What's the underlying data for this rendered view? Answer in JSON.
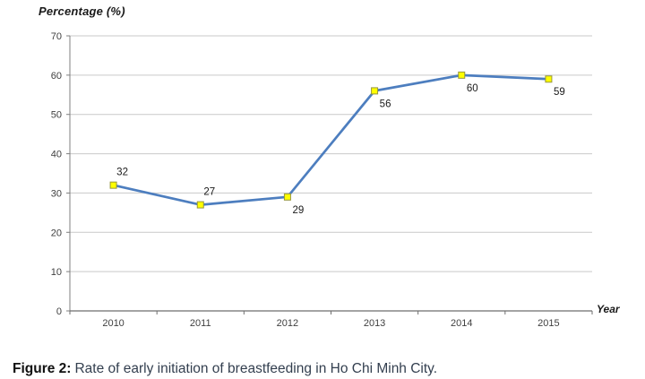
{
  "chart_data": {
    "type": "line",
    "title": "Percentage (%)",
    "xlabel": "Year",
    "ylabel": "Percentage (%)",
    "categories": [
      "2010",
      "2011",
      "2012",
      "2013",
      "2014",
      "2015"
    ],
    "values": [
      32,
      27,
      29,
      56,
      60,
      59
    ],
    "ylim": [
      0,
      70
    ],
    "ytick_step": 10,
    "grid": true,
    "legend_position": "none",
    "label_positions": [
      "above",
      "above",
      "below",
      "below",
      "below",
      "below"
    ],
    "colors": {
      "line": "#4D7EBF",
      "marker_fill": "#FFFF00",
      "marker_border": "#97973B",
      "gridline": "#C9C9C9",
      "axis": "#7F7F7F",
      "tick_label": "#404040",
      "data_label": "#1A1A1A"
    }
  },
  "caption": {
    "label": "Figure 2:",
    "text": "Rate of early initiation of breastfeeding in Ho Chi Minh City."
  }
}
